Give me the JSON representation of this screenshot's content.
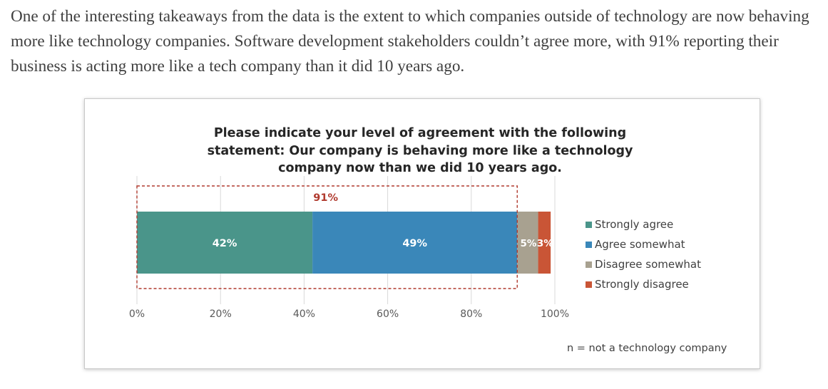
{
  "article": {
    "paragraph": "One of the interesting takeaways from the data is the extent to which companies outside of technology are now behaving more like technology companies. Software development stakeholders couldn’t agree more, with 91% reporting their business is acting more like a tech company than it did 10 years ago."
  },
  "chart_data": {
    "type": "bar",
    "orientation": "horizontal",
    "stacked": true,
    "title": "Please indicate your level of agreement with the following statement: Our company is behaving more like a technology company now than we did 10 years ago.",
    "xlim": [
      0,
      100
    ],
    "x_ticks": [
      "0%",
      "20%",
      "40%",
      "60%",
      "80%",
      "100%"
    ],
    "grid": true,
    "legend_position": "right",
    "series": [
      {
        "name": "Strongly agree",
        "value": 42,
        "label": "42%",
        "color": "#4a958a"
      },
      {
        "name": "Agree somewhat",
        "value": 49,
        "label": "49%",
        "color": "#3a87b9"
      },
      {
        "name": "Disagree somewhat",
        "value": 5,
        "label": "5%",
        "color": "#a8a190"
      },
      {
        "name": "Strongly disagree",
        "value": 3,
        "label": "3%",
        "color": "#c95536"
      }
    ],
    "annotation": {
      "label": "91%",
      "covers_series": [
        "Strongly agree",
        "Agree somewhat"
      ],
      "color": "#b03a2e"
    },
    "footnote": "n = not a technology company"
  }
}
